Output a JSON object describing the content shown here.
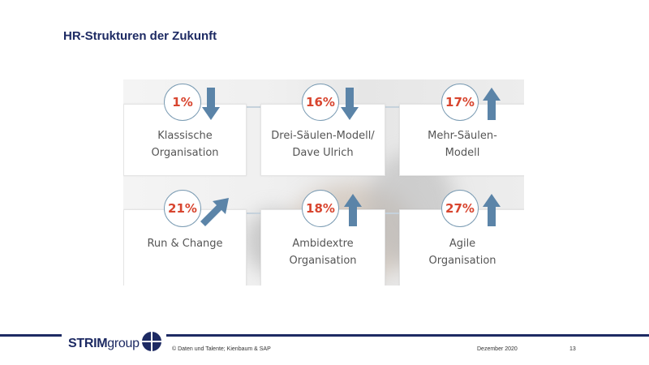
{
  "slide": {
    "title": "HR-Strukturen der Zukunft"
  },
  "colors": {
    "accent_navy": "#1d2a63",
    "percent_red": "#d8452f",
    "arrow_blue": "#5b84a8"
  },
  "cards": [
    {
      "percent": "1%",
      "trend": "down",
      "line1": "Klassische",
      "line2": "Organisation"
    },
    {
      "percent": "16%",
      "trend": "down",
      "line1": "Drei-Säulen-Modell/",
      "line2": "Dave Ulrich"
    },
    {
      "percent": "17%",
      "trend": "up",
      "line1": "Mehr-Säulen-",
      "line2": "Modell"
    },
    {
      "percent": "21%",
      "trend": "up-right",
      "line1": "Run & Change",
      "line2": ""
    },
    {
      "percent": "18%",
      "trend": "up",
      "line1": "Ambidextre",
      "line2": "Organisation"
    },
    {
      "percent": "27%",
      "trend": "up",
      "line1": "Agile",
      "line2": "Organisation"
    }
  ],
  "footer": {
    "logo_strong": "STRIM",
    "logo_light": "group",
    "source": "© Daten und Talente; Kienbaum & SAP",
    "date": "Dezember 2020",
    "page_number": "13"
  }
}
